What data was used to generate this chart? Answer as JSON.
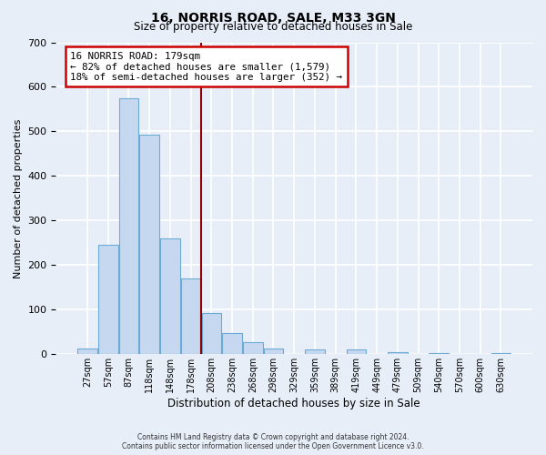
{
  "title": "16, NORRIS ROAD, SALE, M33 3GN",
  "subtitle": "Size of property relative to detached houses in Sale",
  "xlabel": "Distribution of detached houses by size in Sale",
  "ylabel": "Number of detached properties",
  "bar_labels": [
    "27sqm",
    "57sqm",
    "87sqm",
    "118sqm",
    "148sqm",
    "178sqm",
    "208sqm",
    "238sqm",
    "268sqm",
    "298sqm",
    "329sqm",
    "359sqm",
    "389sqm",
    "419sqm",
    "449sqm",
    "479sqm",
    "509sqm",
    "540sqm",
    "570sqm",
    "600sqm",
    "630sqm"
  ],
  "bar_values": [
    12,
    245,
    575,
    493,
    260,
    170,
    92,
    47,
    27,
    12,
    0,
    10,
    0,
    10,
    0,
    5,
    0,
    2,
    0,
    0,
    2
  ],
  "bar_color": "#c5d8f0",
  "bar_edge_color": "#6aaad4",
  "marker_bin_index": 5,
  "marker_color": "#8b0000",
  "annotation_text": "16 NORRIS ROAD: 179sqm\n← 82% of detached houses are smaller (1,579)\n18% of semi-detached houses are larger (352) →",
  "annotation_box_color": "#ffffff",
  "annotation_border_color": "#cc0000",
  "ylim": [
    0,
    700
  ],
  "yticks": [
    0,
    100,
    200,
    300,
    400,
    500,
    600,
    700
  ],
  "footer_line1": "Contains HM Land Registry data © Crown copyright and database right 2024.",
  "footer_line2": "Contains public sector information licensed under the Open Government Licence v3.0.",
  "background_color": "#e8eef8",
  "plot_bg_color": "#e8eef8",
  "grid_color": "#ffffff"
}
